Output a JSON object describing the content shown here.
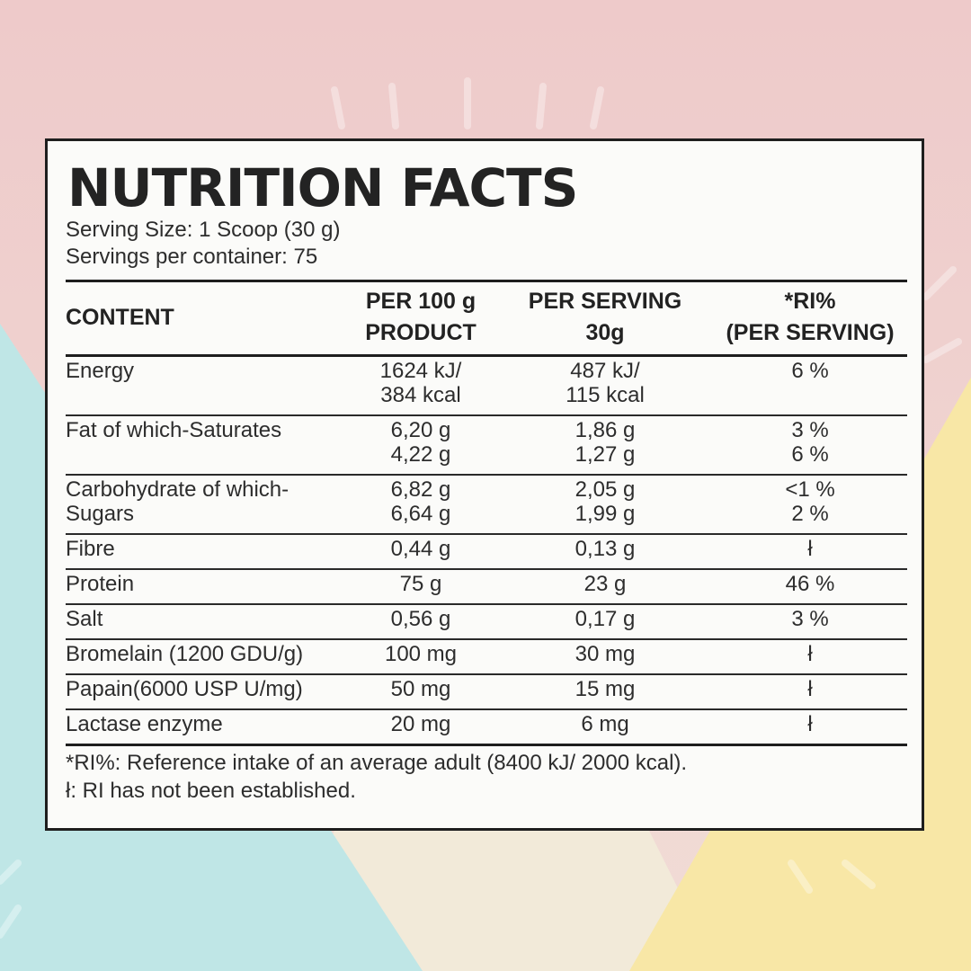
{
  "background": {
    "colors": {
      "top": "#f0cfcf",
      "left": "#bfe6e6",
      "middle": "#f2ead9",
      "right": "#f8e7a6"
    }
  },
  "label": {
    "title": "NUTRITION FACTS",
    "serving_size": "Serving Size: 1 Scoop (30 g)",
    "servings_per_container": "Servings per container: 75",
    "headers": [
      {
        "line1": "CONTENT",
        "line2": ""
      },
      {
        "line1": "PER 100 g",
        "line2": "PRODUCT"
      },
      {
        "line1": "PER SERVING",
        "line2": "30g"
      },
      {
        "line1": "*RI%",
        "line2": "(PER SERVING)"
      }
    ],
    "rows": [
      {
        "name": "Energy",
        "per100": [
          "1624 kJ/",
          "384 kcal"
        ],
        "serving": [
          "487 kJ/",
          "115 kcal"
        ],
        "ri": [
          "6 %"
        ]
      },
      {
        "name": "Fat of which-Saturates",
        "per100": [
          "6,20 g",
          "4,22 g"
        ],
        "serving": [
          "1,86 g",
          "1,27 g"
        ],
        "ri": [
          "3 %",
          "6 %"
        ]
      },
      {
        "name": "Carbohydrate of which-Sugars",
        "per100": [
          "6,82 g",
          "6,64 g"
        ],
        "serving": [
          "2,05 g",
          "1,99 g"
        ],
        "ri": [
          "<1 %",
          "2 %"
        ]
      },
      {
        "name": "Fibre",
        "per100": [
          "0,44 g"
        ],
        "serving": [
          "0,13 g"
        ],
        "ri": [
          "ł"
        ]
      },
      {
        "name": "Protein",
        "per100": [
          "75 g"
        ],
        "serving": [
          "23 g"
        ],
        "ri": [
          "46 %"
        ]
      },
      {
        "name": "Salt",
        "per100": [
          "0,56 g"
        ],
        "serving": [
          "0,17 g"
        ],
        "ri": [
          "3 %"
        ]
      },
      {
        "name": "Bromelain (1200 GDU/g)",
        "per100": [
          "100 mg"
        ],
        "serving": [
          "30 mg"
        ],
        "ri": [
          "ł"
        ]
      },
      {
        "name": "Papain(6000 USP U/mg)",
        "per100": [
          "50 mg"
        ],
        "serving": [
          "15 mg"
        ],
        "ri": [
          "ł"
        ]
      },
      {
        "name": "Lactase enzyme",
        "per100": [
          "20 mg"
        ],
        "serving": [
          "6 mg"
        ],
        "ri": [
          "ł"
        ]
      }
    ],
    "footnote_ri": "*RI%: Reference intake of an average adult  (8400 kJ/ 2000 kcal).",
    "footnote_na": "ł: RI has not been established."
  }
}
